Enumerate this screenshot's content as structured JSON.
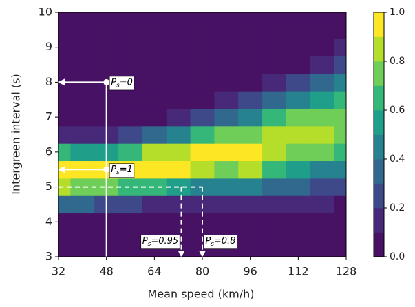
{
  "chart_data": {
    "type": "contour",
    "xlabel": "Mean speed (km/h)",
    "ylabel": "Intergreen interval (s)",
    "x": [
      32,
      40,
      48,
      56,
      64,
      72,
      80,
      88,
      96,
      104,
      112,
      120,
      128
    ],
    "y": [
      3,
      3.5,
      4,
      4.5,
      5,
      5.5,
      6,
      6.5,
      7,
      7.5,
      8,
      8.5,
      9,
      9.5,
      10
    ],
    "z": [
      [
        0,
        0,
        0,
        0,
        0,
        0,
        0,
        0,
        0,
        0,
        0,
        0,
        0
      ],
      [
        0.01,
        0,
        0,
        0,
        0,
        0,
        0,
        0,
        0.01,
        0.01,
        0.01,
        0.01,
        0.01
      ],
      [
        0.07,
        0.05,
        0.04,
        0.03,
        0.03,
        0.03,
        0.03,
        0.04,
        0.05,
        0.05,
        0.05,
        0.04,
        0.03
      ],
      [
        0.32,
        0.3,
        0.26,
        0.21,
        0.19,
        0.18,
        0.15,
        0.16,
        0.17,
        0.16,
        0.14,
        0.11,
        0.09
      ],
      [
        0.8,
        0.79,
        0.77,
        0.68,
        0.61,
        0.55,
        0.46,
        0.44,
        0.42,
        0.37,
        0.32,
        0.26,
        0.21
      ],
      [
        0.99,
        0.99,
        0.98,
        1.0,
        0.99,
        0.93,
        0.84,
        0.78,
        0.81,
        0.65,
        0.57,
        0.47,
        0.4
      ],
      [
        0.61,
        0.59,
        0.55,
        0.68,
        0.8,
        0.88,
        0.93,
        0.92,
        0.9,
        0.85,
        0.79,
        0.7,
        0.61
      ],
      [
        0.19,
        0.16,
        0.14,
        0.21,
        0.32,
        0.46,
        0.62,
        0.72,
        0.79,
        0.82,
        0.85,
        0.82,
        0.77
      ],
      [
        0.03,
        0.02,
        0.01,
        0.03,
        0.07,
        0.13,
        0.25,
        0.37,
        0.48,
        0.6,
        0.71,
        0.76,
        0.79
      ],
      [
        0,
        0,
        0,
        0,
        0.01,
        0.02,
        0.06,
        0.13,
        0.21,
        0.32,
        0.46,
        0.57,
        0.65
      ],
      [
        0,
        0,
        0,
        0,
        0,
        0,
        0.01,
        0.03,
        0.06,
        0.13,
        0.24,
        0.34,
        0.44
      ],
      [
        0,
        0,
        0,
        0,
        0,
        0,
        0,
        0,
        0.01,
        0.04,
        0.09,
        0.16,
        0.24
      ],
      [
        0,
        0,
        0,
        0,
        0,
        0,
        0,
        0,
        0,
        0.01,
        0.03,
        0.06,
        0.11
      ],
      [
        0,
        0,
        0,
        0,
        0,
        0,
        0,
        0,
        0,
        0,
        0,
        0.02,
        0.04
      ],
      [
        0,
        0,
        0,
        0,
        0,
        0,
        0,
        0,
        0,
        0,
        0,
        0,
        0.01
      ]
    ],
    "levels": [
      0,
      0.1,
      0.2,
      0.3,
      0.4,
      0.5,
      0.6,
      0.7,
      0.8,
      0.9,
      1.0
    ],
    "colormap": [
      "#471164",
      "#482878",
      "#3e4989",
      "#31688e",
      "#26828e",
      "#1f9e89",
      "#35b779",
      "#6ece58",
      "#b5de2b",
      "#fde725"
    ],
    "xlim": [
      32,
      128
    ],
    "ylim": [
      3,
      10
    ],
    "xticks": [
      32,
      48,
      64,
      80,
      96,
      112,
      128
    ],
    "yticks": [
      3,
      4,
      5,
      6,
      7,
      8,
      9,
      10
    ],
    "clim": [
      0,
      1
    ],
    "cticks": [
      {
        "value": 0,
        "label": "0.0"
      },
      {
        "value": 0.2,
        "label": "0.2"
      },
      {
        "value": 0.4,
        "label": "0.4"
      },
      {
        "value": 0.6,
        "label": "0.6"
      },
      {
        "value": 0.8,
        "label": "0.8"
      },
      {
        "value": 1,
        "label": "1.0"
      }
    ],
    "guides": [
      {
        "style": "solid",
        "from": [
          48,
          3
        ],
        "to": [
          48,
          8
        ],
        "arrow": false
      },
      {
        "style": "solid",
        "from": [
          48,
          8
        ],
        "to": [
          32,
          8
        ],
        "arrow": true
      },
      {
        "style": "solid",
        "from": [
          48,
          5.5
        ],
        "to": [
          32,
          5.5
        ],
        "arrow": true
      },
      {
        "style": "dashed",
        "from": [
          32,
          5
        ],
        "to": [
          80,
          5
        ],
        "arrow": false
      },
      {
        "style": "dashed",
        "from": [
          73,
          5
        ],
        "to": [
          73,
          3
        ],
        "arrow": true
      },
      {
        "style": "dashed",
        "from": [
          80,
          5
        ],
        "to": [
          80,
          3
        ],
        "arrow": true
      }
    ],
    "points": [
      [
        48,
        8
      ],
      [
        48,
        5.5
      ]
    ],
    "annotations": [
      {
        "symbol": "P",
        "subscript": "s",
        "text": "=0",
        "x": 49.5,
        "y": 8,
        "anchor": "start"
      },
      {
        "symbol": "P",
        "subscript": "s",
        "text": "=1",
        "x": 49.5,
        "y": 5.5,
        "anchor": "start"
      },
      {
        "symbol": "P",
        "subscript": "s",
        "text": "=0.95",
        "x": 72,
        "y": 3.45,
        "anchor": "end"
      },
      {
        "symbol": "P",
        "subscript": "s",
        "text": "=0.8",
        "x": 81,
        "y": 3.45,
        "anchor": "start"
      }
    ]
  }
}
